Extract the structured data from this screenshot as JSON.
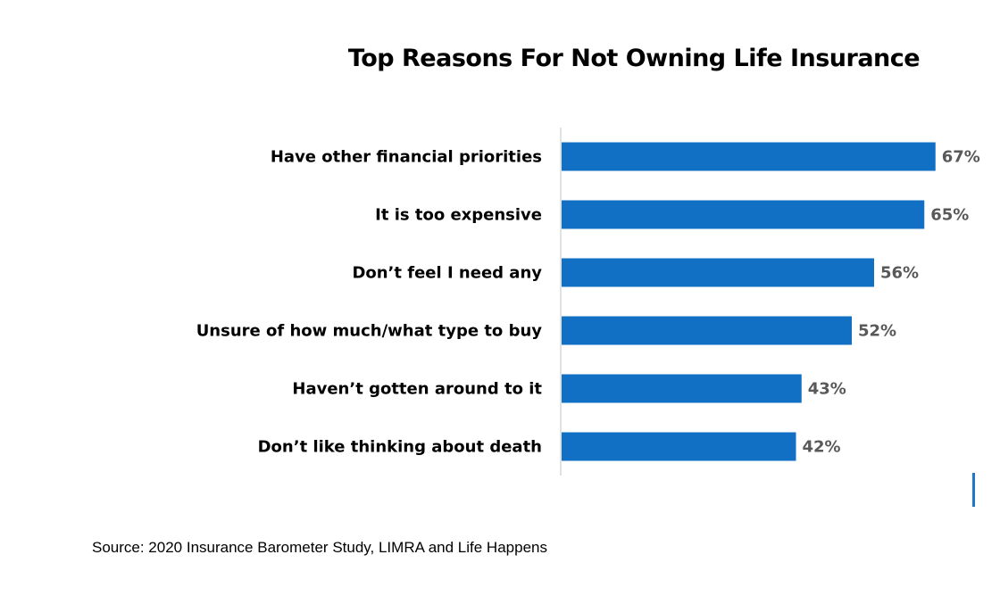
{
  "chart_data": {
    "type": "bar",
    "orientation": "horizontal",
    "title": "Top Reasons For Not Owning Life Insurance",
    "categories": [
      "Have other financial priorities",
      "It is too expensive",
      "Don’t feel I need any",
      "Unsure of how much/what type to buy",
      "Haven’t gotten around to it",
      "Don’t like thinking about death"
    ],
    "values": [
      67,
      65,
      56,
      52,
      43,
      42
    ],
    "value_labels": [
      "67%",
      "65%",
      "56%",
      "52%",
      "43%",
      "42%"
    ],
    "unit": "%",
    "xlim": [
      0,
      70
    ],
    "grid": false,
    "legend": "none",
    "bar_color": "#1270c4"
  },
  "source": "Source: 2020 Insurance Barometer Study, LIMRA and Life Happens"
}
